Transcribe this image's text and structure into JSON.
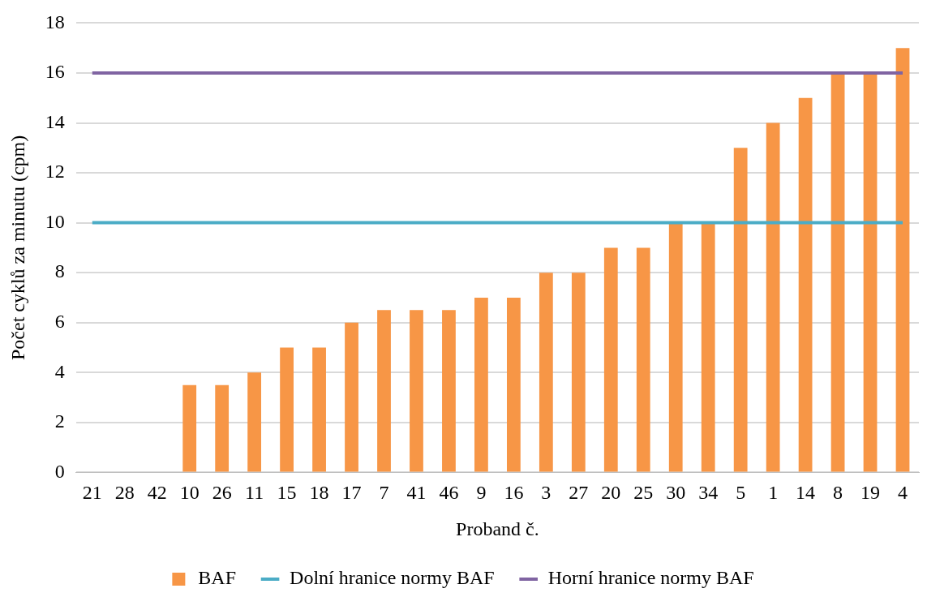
{
  "chart_data": {
    "type": "bar",
    "xlabel": "Proband č.",
    "ylabel": "Počet cyklů za minutu (cpm)",
    "categories": [
      "21",
      "28",
      "42",
      "10",
      "26",
      "11",
      "15",
      "18",
      "17",
      "7",
      "41",
      "46",
      "9",
      "16",
      "3",
      "27",
      "20",
      "25",
      "30",
      "34",
      "5",
      "1",
      "14",
      "8",
      "19",
      "4"
    ],
    "series": [
      {
        "name": "BAF",
        "color": "#f79646",
        "values": [
          0,
          0,
          0,
          3.5,
          3.5,
          4,
          5,
          5,
          6,
          6.5,
          6.5,
          6.5,
          7,
          7,
          8,
          8,
          9,
          9,
          10,
          10,
          13,
          14,
          15,
          16,
          16,
          17
        ]
      },
      {
        "name": "Dolní hranice normy BAF",
        "type": "line",
        "color": "#4bacc6",
        "values": [
          10,
          10,
          10,
          10,
          10,
          10,
          10,
          10,
          10,
          10,
          10,
          10,
          10,
          10,
          10,
          10,
          10,
          10,
          10,
          10,
          10,
          10,
          10,
          10,
          10,
          10
        ]
      },
      {
        "name": "Horní hranice normy BAF",
        "type": "line",
        "color": "#8064a2",
        "values": [
          16,
          16,
          16,
          16,
          16,
          16,
          16,
          16,
          16,
          16,
          16,
          16,
          16,
          16,
          16,
          16,
          16,
          16,
          16,
          16,
          16,
          16,
          16,
          16,
          16,
          16
        ]
      }
    ],
    "ylim": [
      0,
      18
    ],
    "yticks": [
      0,
      2,
      4,
      6,
      8,
      10,
      12,
      14,
      16,
      18
    ],
    "grid": "y",
    "legend": "bottom",
    "marker": "none",
    "line_style": "solid"
  }
}
